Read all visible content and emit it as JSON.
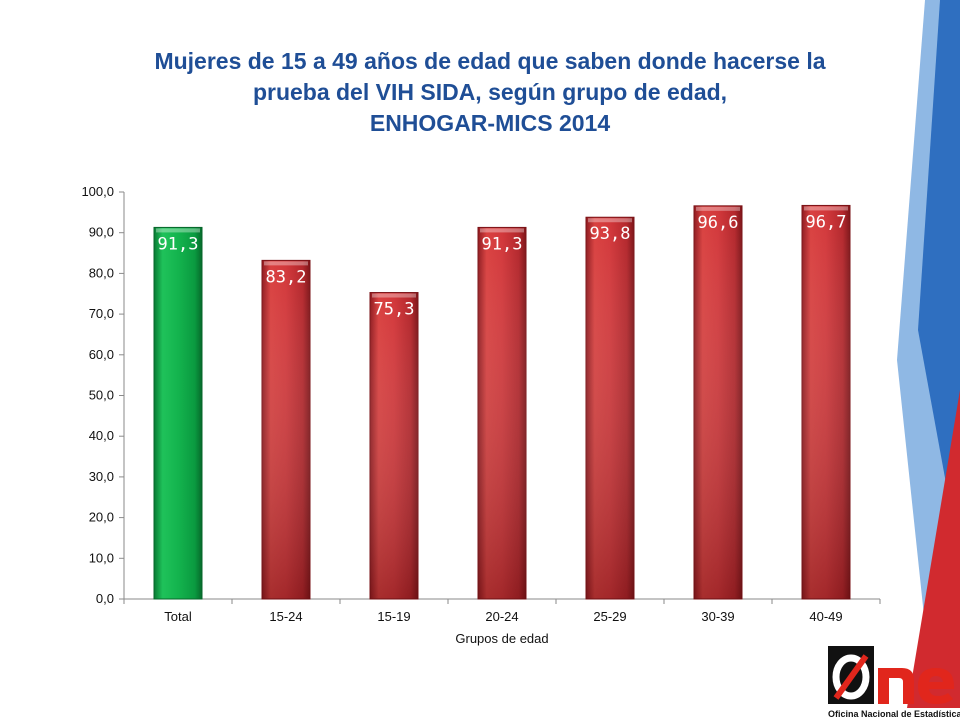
{
  "slide": {
    "title_lines": [
      "Mujeres de 15 a 49 años de edad que saben donde hacerse la",
      "prueba del VIH SIDA, según grupo de edad,",
      "ENHOGAR-MICS 2014"
    ]
  },
  "chart_data": {
    "type": "bar",
    "title": "Mujeres de 15 a 49 años de edad que saben donde hacerse la prueba del VIH SIDA, según grupo de edad, ENHOGAR-MICS 2014",
    "categories": [
      "Total",
      "15-24",
      "15-19",
      "20-24",
      "25-29",
      "30-39",
      "40-49"
    ],
    "values": [
      91.3,
      83.2,
      75.3,
      91.3,
      93.8,
      96.6,
      96.7
    ],
    "data_labels": [
      "91,3",
      "83,2",
      "75,3",
      "91,3",
      "93,8",
      "96,6",
      "96,7"
    ],
    "bar_colors": [
      "#0db14b",
      "#c0252d",
      "#c0252d",
      "#c0252d",
      "#c0252d",
      "#c0252d",
      "#c0252d"
    ],
    "xlabel": "Grupos de edad",
    "ylabel": "",
    "ylim": [
      0,
      100
    ],
    "yticks": [
      "0,0",
      "10,0",
      "20,0",
      "30,0",
      "40,0",
      "50,0",
      "60,0",
      "70,0",
      "80,0",
      "90,0",
      "100,0"
    ],
    "grid": false,
    "legend": "none"
  },
  "logo": {
    "text": "One",
    "caption": "Oficina Nacional de Estadística",
    "colors": {
      "red": "#e1261c",
      "black": "#111111",
      "blue": "#1f5aa6"
    }
  },
  "decoration": {
    "colors": {
      "light_blue": "#8fb8e4",
      "blue": "#2f6fc0",
      "red": "#d12a2f"
    }
  }
}
